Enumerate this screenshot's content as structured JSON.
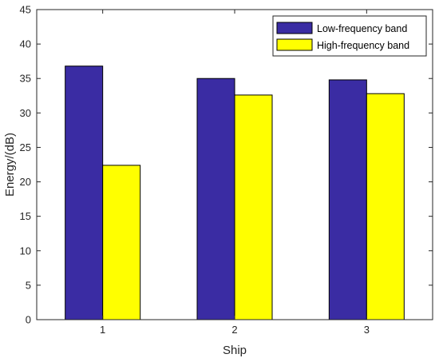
{
  "chart_data": {
    "type": "bar",
    "categories": [
      "1",
      "2",
      "3"
    ],
    "series": [
      {
        "name": "Low-frequency band",
        "values": [
          36.8,
          35.0,
          34.8
        ],
        "color": "#3a2ca3"
      },
      {
        "name": "High-frequency band",
        "values": [
          22.4,
          32.6,
          32.8
        ],
        "color": "#ffff00"
      }
    ],
    "title": "",
    "xlabel": "Ship",
    "ylabel": "Energy/(dB)",
    "ylim": [
      0,
      45
    ],
    "yticks": [
      0,
      5,
      10,
      15,
      20,
      25,
      30,
      35,
      40,
      45
    ],
    "grid": false,
    "legend_position": "top-right"
  }
}
